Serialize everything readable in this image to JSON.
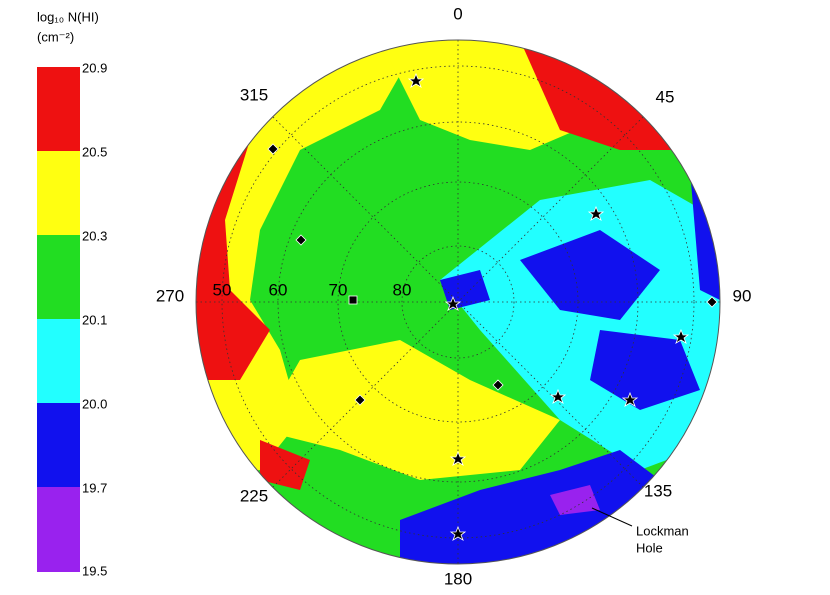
{
  "colorbar": {
    "title": "log₁₀ N(HI)",
    "unit": "(cm⁻²)",
    "ticks": [
      "20.9",
      "20.5",
      "20.3",
      "20.1",
      "20.0",
      "19.7",
      "19.5"
    ]
  },
  "map": {
    "azimuth_labels": [
      "0",
      "45",
      "90",
      "135",
      "180",
      "225",
      "270",
      "315"
    ],
    "latitude_labels": [
      "50",
      "60",
      "70",
      "80"
    ],
    "annotation": [
      "Lockman",
      "Hole"
    ]
  }
}
